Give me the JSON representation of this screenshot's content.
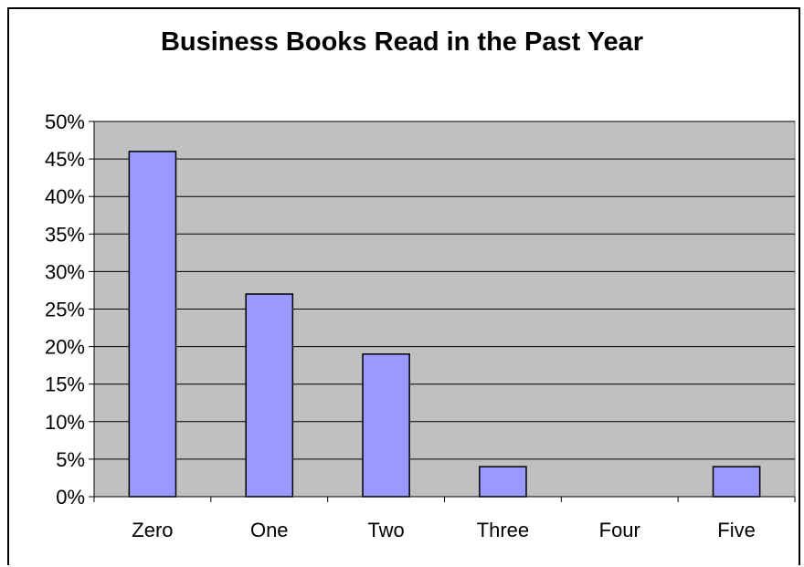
{
  "chart_data": {
    "type": "bar",
    "title": "Business Books Read in the Past Year",
    "xlabel": "",
    "ylabel": "",
    "categories": [
      "Zero",
      "One",
      "Two",
      "Three",
      "Four",
      "Five"
    ],
    "values": [
      46,
      27,
      19,
      4,
      0,
      4
    ],
    "unit": "%",
    "ylim": [
      0,
      50
    ],
    "ytick_step": 5,
    "grid": true,
    "legend": "none",
    "colors": {
      "bar_fill": "#9999ff",
      "bar_stroke": "#000000",
      "plot_background": "#c0c0c0",
      "gridline": "#000000"
    }
  }
}
